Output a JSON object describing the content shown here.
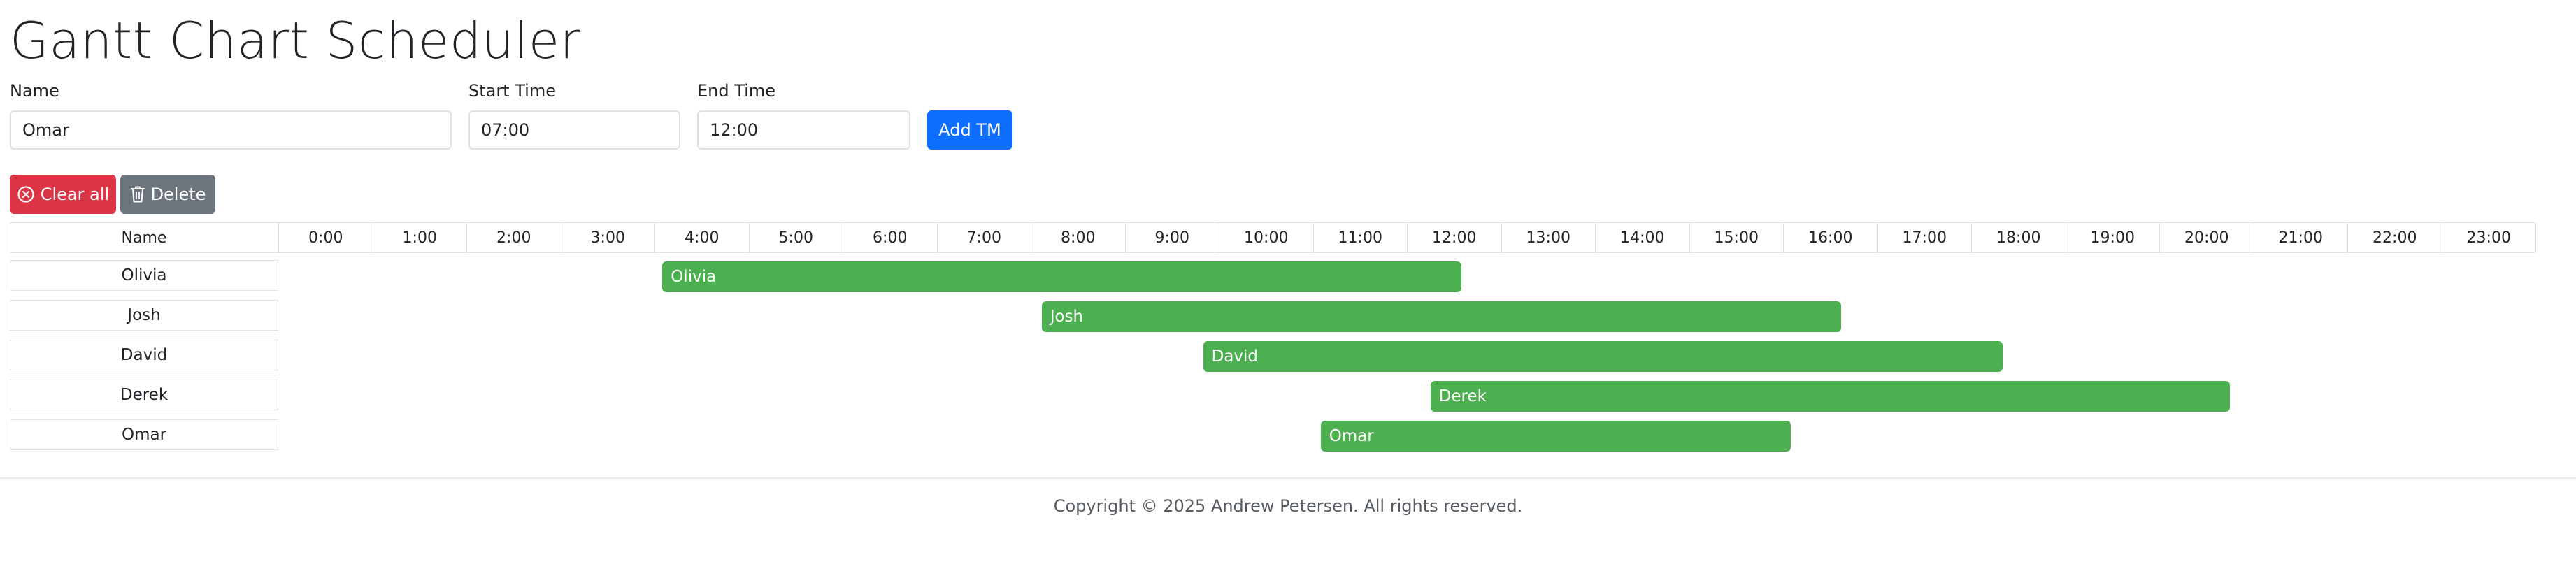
{
  "page": {
    "title": "Gantt Chart Scheduler"
  },
  "form": {
    "name_label": "Name",
    "name_value": "Omar",
    "start_label": "Start Time",
    "start_value": "07:00",
    "end_label": "End Time",
    "end_value": "12:00",
    "add_button": "Add TM"
  },
  "toolbar": {
    "clear_all": "Clear all",
    "clear_icon": "x-circle-icon",
    "delete": "Delete",
    "delete_icon": "trash-icon"
  },
  "table": {
    "name_header": "Name",
    "hours": [
      "0:00",
      "1:00",
      "2:00",
      "3:00",
      "4:00",
      "5:00",
      "6:00",
      "7:00",
      "8:00",
      "9:00",
      "10:00",
      "11:00",
      "12:00",
      "13:00",
      "14:00",
      "15:00",
      "16:00",
      "17:00",
      "18:00",
      "19:00",
      "20:00",
      "21:00",
      "22:00",
      "23:00"
    ]
  },
  "chart_data": {
    "type": "gantt",
    "bar_color": "#4caf50",
    "tasks": [
      {
        "name": "Olivia",
        "start": "04:05",
        "end": "12:35"
      },
      {
        "name": "Josh",
        "start": "08:07",
        "end": "16:37"
      },
      {
        "name": "David",
        "start": "09:50",
        "end": "18:20"
      },
      {
        "name": "Derek",
        "start": "12:15",
        "end": "20:45"
      },
      {
        "name": "Omar",
        "start": "11:05",
        "end": "16:05"
      }
    ]
  },
  "footer": {
    "copyright": "Copyright © 2025 Andrew Petersen. All rights reserved."
  }
}
